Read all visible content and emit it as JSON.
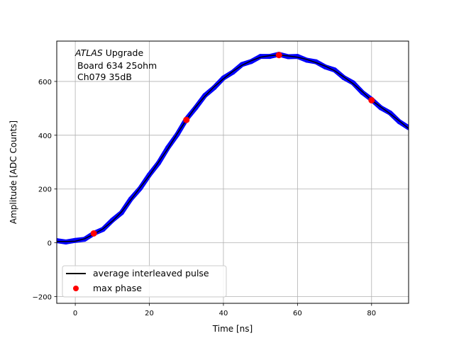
{
  "chart_data": {
    "type": "line",
    "title": "",
    "xlabel": "Time [ns]",
    "ylabel": "Amplitude [ADC Counts]",
    "xlim": [
      -5,
      90
    ],
    "ylim": [
      -225,
      750
    ],
    "xticks": [
      0,
      20,
      40,
      60,
      80
    ],
    "yticks": [
      -200,
      0,
      200,
      400,
      600
    ],
    "grid": true,
    "legend_placement": "lower-left",
    "annotation": {
      "experiment": "ATLAS",
      "experiment_suffix": "Upgrade",
      "line2": "Board 634 25ohm",
      "line3": "Ch079 35dB"
    },
    "series": [
      {
        "name": "average interleaved pulse",
        "color": "#000000",
        "style": "line",
        "x": [
          -5,
          -2.5,
          0,
          2.5,
          5,
          7.5,
          10,
          12.5,
          15,
          17.5,
          20,
          22.5,
          25,
          27.5,
          30,
          32.5,
          35,
          37.5,
          40,
          42.5,
          45,
          47.5,
          50,
          52.5,
          55,
          57.5,
          60,
          62.5,
          65,
          67.5,
          70,
          72.5,
          75,
          77.5,
          80,
          82.5,
          85,
          87.5,
          90
        ],
        "y": [
          5,
          5,
          6,
          15,
          32,
          52,
          80,
          115,
          160,
          205,
          250,
          300,
          350,
          405,
          457,
          505,
          545,
          580,
          610,
          637,
          660,
          677,
          690,
          696,
          698,
          695,
          690,
          682,
          670,
          657,
          640,
          617,
          592,
          562,
          530,
          505,
          480,
          453,
          425
        ]
      },
      {
        "color": "#0000ff",
        "style": "markers",
        "x": [
          -5,
          -2.5,
          0,
          2.5,
          5,
          7.5,
          10,
          12.5,
          15,
          17.5,
          20,
          22.5,
          25,
          27.5,
          30,
          32.5,
          35,
          37.5,
          40,
          42.5,
          45,
          47.5,
          50,
          52.5,
          55,
          57.5,
          60,
          62.5,
          65,
          67.5,
          70,
          72.5,
          75,
          77.5,
          80,
          82.5,
          85,
          87.5,
          90
        ],
        "y": [
          8,
          3,
          9,
          13,
          35,
          50,
          84,
          112,
          163,
          202,
          253,
          297,
          354,
          402,
          460,
          502,
          548,
          577,
          613,
          634,
          663,
          674,
          693,
          693,
          701,
          692,
          693,
          679,
          673,
          654,
          643,
          614,
          595,
          559,
          533,
          502,
          483,
          450,
          428
        ]
      },
      {
        "name": "max phase",
        "color": "#ff0000",
        "style": "markers",
        "x": [
          5,
          30,
          55,
          80
        ],
        "y": [
          35,
          457,
          698,
          530
        ]
      }
    ]
  }
}
